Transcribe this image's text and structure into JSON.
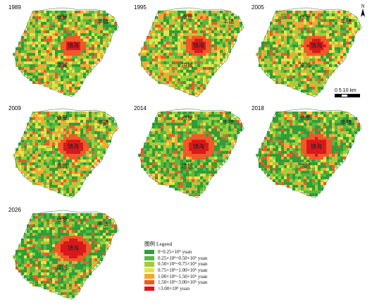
{
  "panels": [
    {
      "year": "1989"
    },
    {
      "year": "1995"
    },
    {
      "year": "2005"
    },
    {
      "year": "2009"
    },
    {
      "year": "2014"
    },
    {
      "year": "2018"
    },
    {
      "year": "2026"
    }
  ],
  "places": {
    "zhuoluo": "卓箩",
    "fengzhen": "丰镇",
    "xinghai": "镇海",
    "liangcheng": "凉城"
  },
  "north_label": "N",
  "scale_label": "0  5 10 km",
  "legend": {
    "title": "图例 Legend",
    "items": [
      {
        "label": "0~0.25×10⁶ yuan",
        "color": "#2e9e3a"
      },
      {
        "label": "0.25×10⁶~0.50×10⁶ yuan",
        "color": "#5bb83f"
      },
      {
        "label": "0.50×10⁶~0.75×10⁶ yuan",
        "color": "#9fce3c"
      },
      {
        "label": "0.75×10⁶~1.00×10⁶ yuan",
        "color": "#e6e24a"
      },
      {
        "label": "1.00×10⁶~1.50×10⁶ yuan",
        "color": "#f7a833"
      },
      {
        "label": "1.50×10⁶~3.00×10⁶ yuan",
        "color": "#ef5a28"
      },
      {
        "label": ">3.00×10⁶ yuan",
        "color": "#d7191c"
      }
    ]
  }
}
